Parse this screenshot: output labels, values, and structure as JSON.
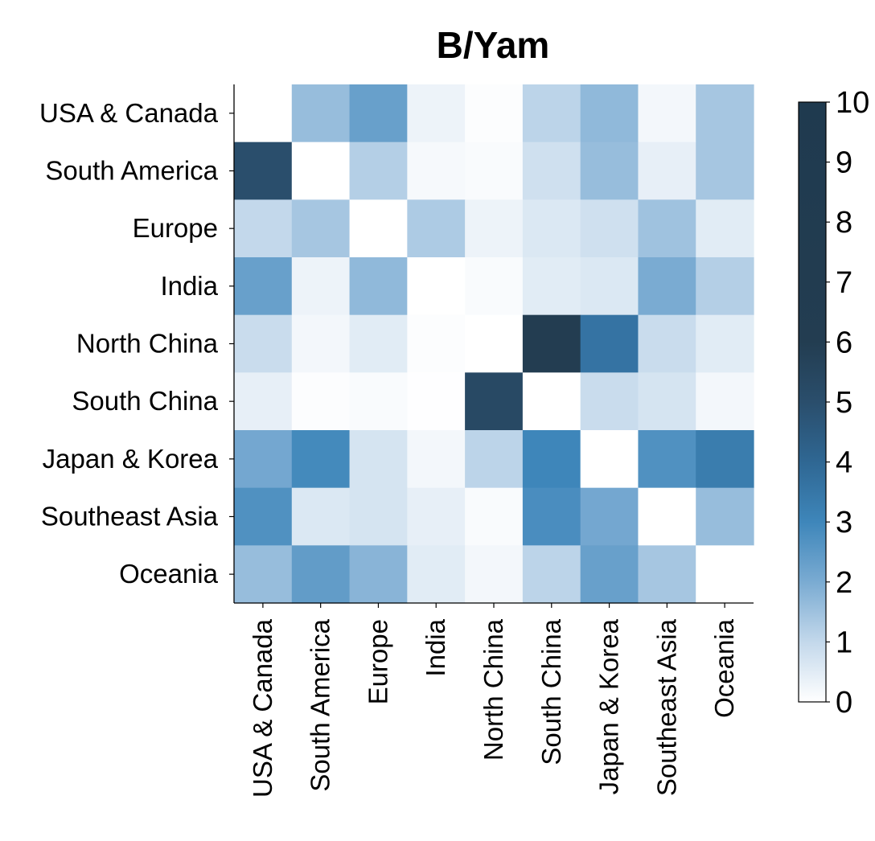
{
  "chart_data": {
    "type": "heatmap",
    "title": "B/Yam",
    "rows": [
      "USA & Canada",
      "South America",
      "Europe",
      "India",
      "North China",
      "South China",
      "Japan & Korea",
      "Southeast Asia",
      "Oceania"
    ],
    "columns": [
      "USA & Canada",
      "South America",
      "Europe",
      "India",
      "North China",
      "South China",
      "Japan & Korea",
      "Southeast Asia",
      "Oceania"
    ],
    "values": [
      [
        0,
        1.6,
        2.3,
        0.3,
        0.05,
        1.1,
        1.7,
        0.2,
        1.4
      ],
      [
        5.0,
        0,
        1.2,
        0.15,
        0.1,
        0.8,
        1.6,
        0.4,
        1.4
      ],
      [
        1.0,
        1.4,
        0,
        1.3,
        0.3,
        0.6,
        0.8,
        1.5,
        0.5
      ],
      [
        2.3,
        0.3,
        1.7,
        0,
        0.1,
        0.5,
        0.6,
        2.0,
        1.2
      ],
      [
        0.9,
        0.2,
        0.5,
        0.05,
        0,
        6.0,
        3.6,
        0.9,
        0.5
      ],
      [
        0.4,
        0.05,
        0.1,
        0.02,
        5.3,
        0,
        0.9,
        0.7,
        0.2
      ],
      [
        2.1,
        2.9,
        0.7,
        0.2,
        1.1,
        3.0,
        0,
        2.7,
        3.3
      ],
      [
        2.7,
        0.6,
        0.7,
        0.4,
        0.1,
        2.8,
        2.1,
        0,
        1.6
      ],
      [
        1.6,
        2.4,
        1.8,
        0.5,
        0.2,
        1.1,
        2.3,
        1.4,
        0
      ]
    ],
    "diagonal": "blank",
    "colorbar": {
      "min": 0,
      "max": 10,
      "ticks": [
        "0",
        "1",
        "2",
        "3",
        "4",
        "5",
        "6",
        "7",
        "8",
        "9",
        "10"
      ],
      "colors": [
        {
          "v": 0,
          "c": "#ffffff"
        },
        {
          "v": 1,
          "c": "#c3d8eb"
        },
        {
          "v": 2,
          "c": "#7aabd2"
        },
        {
          "v": 3,
          "c": "#3e86ba"
        },
        {
          "v": 4,
          "c": "#2f6793"
        },
        {
          "v": 5,
          "c": "#2a4e6c"
        },
        {
          "v": 6,
          "c": "#233d51"
        },
        {
          "v": 10,
          "c": "#1f3a4f"
        }
      ]
    }
  }
}
